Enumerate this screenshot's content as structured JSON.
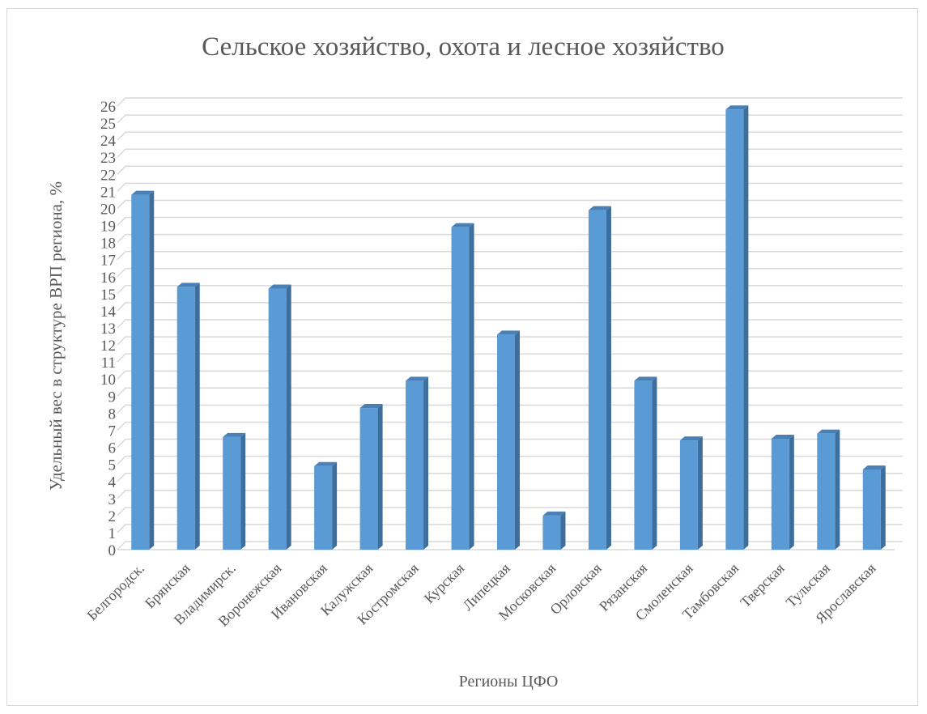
{
  "chart_data": {
    "type": "bar",
    "style": "3d-column",
    "title": "Сельское хозяйство, охота и лесное хозяйство",
    "xlabel": "Регионы ЦФО",
    "ylabel": "Удельный вес в структуре ВРП региона, %",
    "categories": [
      "Белгородск.",
      "Брянская",
      "Владимирск.",
      "Воронежская",
      "Ивановская",
      "Калужская",
      "Костромская",
      "Курская",
      "Липецкая",
      "Московская",
      "Орловская",
      "Рязанская",
      "Смоленская",
      "Тамбовская",
      "Тверская",
      "Тульская",
      "Ярославская"
    ],
    "values": [
      20.8,
      15.4,
      6.6,
      15.3,
      4.9,
      8.3,
      9.9,
      18.9,
      12.6,
      2.0,
      19.9,
      9.9,
      6.4,
      25.8,
      6.5,
      6.8,
      4.7
    ],
    "ylim": [
      0,
      26
    ],
    "yticks": [
      0,
      1,
      2,
      3,
      4,
      5,
      6,
      7,
      8,
      9,
      10,
      11,
      12,
      13,
      14,
      15,
      16,
      17,
      18,
      19,
      20,
      21,
      22,
      23,
      24,
      25,
      26
    ],
    "grid": true,
    "legend": "none",
    "colors": {
      "bar_front": "#5b9bd5",
      "bar_side": "#3d6e9c",
      "bar_top": "#4a80b5",
      "grid": "#d9d9d9",
      "text": "#595959"
    }
  }
}
